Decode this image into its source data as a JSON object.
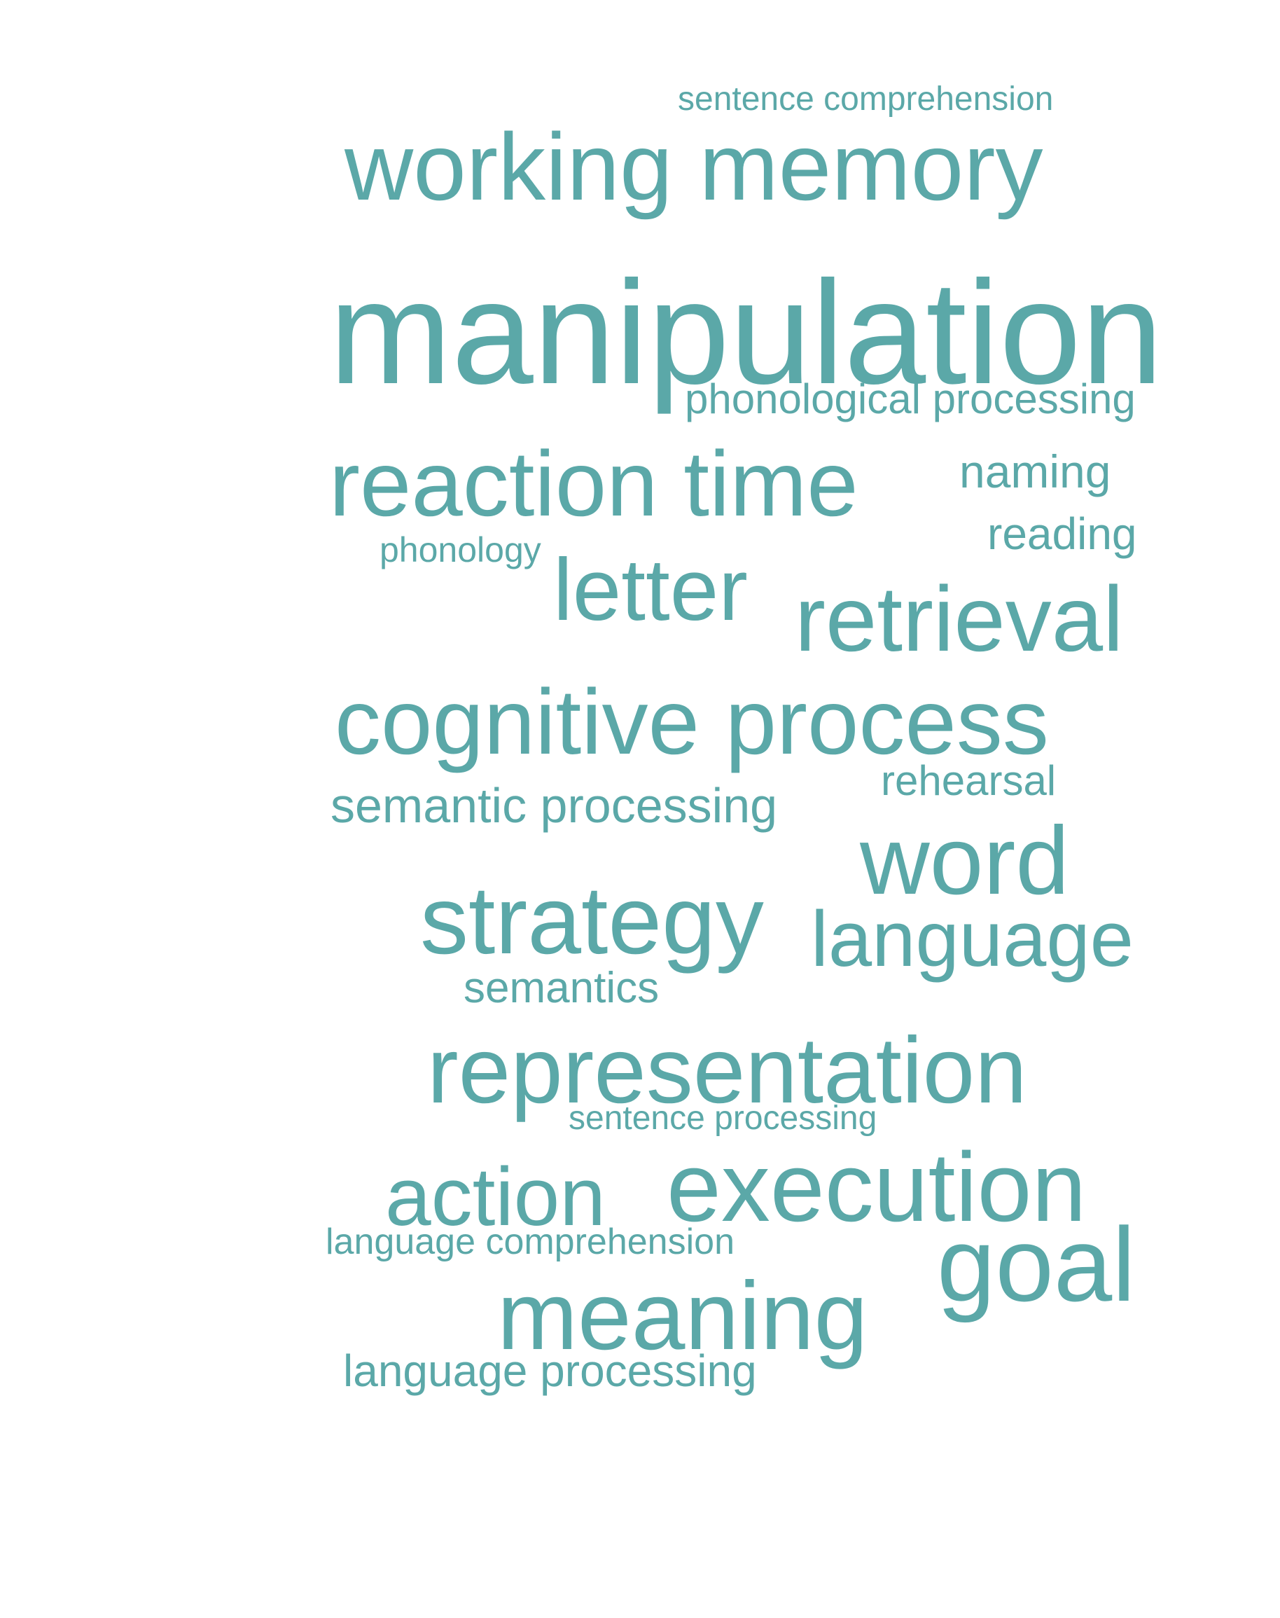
{
  "wordcloud": {
    "color": "#5ba8a8",
    "words": [
      "sentence comprehension",
      "working memory",
      "manipulation",
      "phonological processing",
      "reaction time",
      "naming",
      "reading",
      "phonology",
      "letter",
      "retrieval",
      "cognitive process",
      "rehearsal",
      "semantic processing",
      "word",
      "strategy",
      "language",
      "semantics",
      "representation",
      "sentence processing",
      "action",
      "execution",
      "language comprehension",
      "goal",
      "meaning",
      "language processing"
    ]
  }
}
